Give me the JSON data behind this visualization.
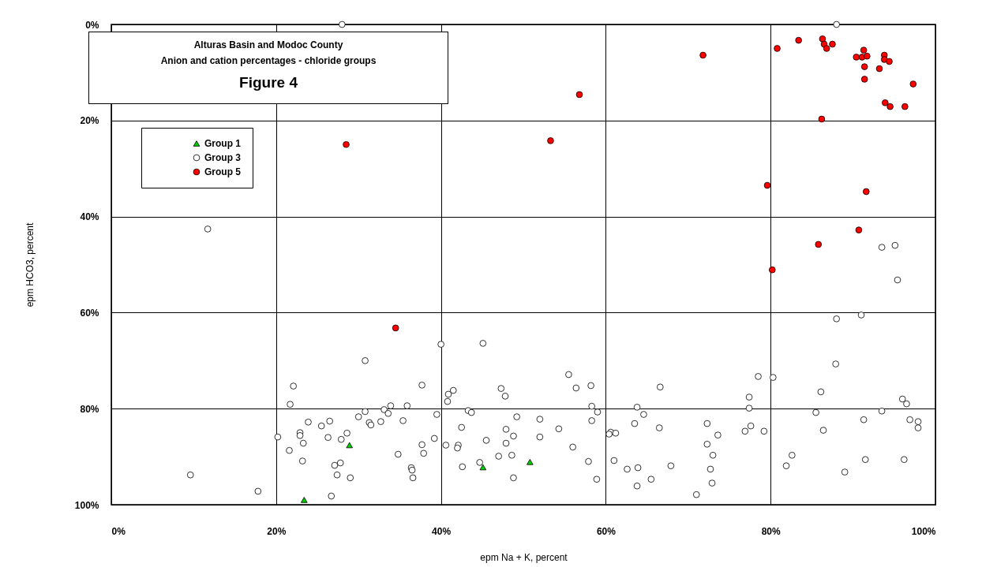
{
  "chart_data": {
    "type": "scatter",
    "title": "Alturas Basin and Modoc County",
    "subtitle": "Anion and cation percentages - chloride groups",
    "annotations": [
      "Figure 4"
    ],
    "xlabel": "epm Na + K, percent",
    "ylabel": "epm HCO3, percent",
    "xlim": [
      0,
      100
    ],
    "ylim": [
      100,
      0
    ],
    "xticks": [
      {
        "value": 0,
        "label": "0%"
      },
      {
        "value": 20,
        "label": "20%"
      },
      {
        "value": 40,
        "label": "40%"
      },
      {
        "value": 60,
        "label": "60%"
      },
      {
        "value": 80,
        "label": "80%"
      },
      {
        "value": 100,
        "label": "100%"
      }
    ],
    "yticks": [
      {
        "value": 0,
        "label": "0%"
      },
      {
        "value": 20,
        "label": "20%"
      },
      {
        "value": 40,
        "label": "40%"
      },
      {
        "value": 60,
        "label": "60%"
      },
      {
        "value": 80,
        "label": "80%"
      },
      {
        "value": 100,
        "label": "100%"
      }
    ],
    "grid": true,
    "legend": "top left",
    "series": [
      {
        "name": "Group 1",
        "color": "#00cc00",
        "marker": "triangle",
        "x": [
          28.9,
          23.4,
          45.1,
          50.8
        ],
        "values": [
          87.6,
          99.0,
          92.2,
          91.1
        ]
      },
      {
        "name": "Group 3",
        "color": "#ffffff",
        "marker": "circle",
        "x": [
          28,
          11.7,
          88,
          93.5,
          95.1,
          95.4,
          88.0,
          91.0,
          87.9,
          78.5,
          80.3,
          55.5,
          56.4,
          58.2,
          66.6,
          77.4,
          77.4,
          86.1,
          96.0,
          96.5,
          58.3,
          59.0,
          52.0,
          58.3,
          54.3,
          52.0,
          56.0,
          57.9,
          58.9,
          63.8,
          64.6,
          63.5,
          60.6,
          60.4,
          61.2,
          66.5,
          61.0,
          62.6,
          63.9,
          63.8,
          65.5,
          67.9,
          72.3,
          73.6,
          72.3,
          73.0,
          72.7,
          72.9,
          71.0,
          76.9,
          77.6,
          79.2,
          85.5,
          86.4,
          91.3,
          93.5,
          96.9,
          97.9,
          97.9,
          82.6,
          81.9,
          89.0,
          91.5,
          96.2,
          40.0,
          45.1,
          30.8,
          22.1,
          21.7,
          37.7,
          40.9,
          41.5,
          40.8,
          47.3,
          47.8,
          30.8,
          33.1,
          33.9,
          33.6,
          35.9,
          30.0,
          31.3,
          31.5,
          32.7,
          35.4,
          39.5,
          43.3,
          43.7,
          49.2,
          23.9,
          25.5,
          26.5,
          22.9,
          22.9,
          20.2,
          26.3,
          27.9,
          28.6,
          23.3,
          21.6,
          23.2,
          27.1,
          27.8,
          27.4,
          29.0,
          26.7,
          17.8,
          9.6,
          34.8,
          37.7,
          37.9,
          39.2,
          36.4,
          36.5,
          36.6,
          42.5,
          40.6,
          42.1,
          42.0,
          45.5,
          47.9,
          48.8,
          47.9,
          47.0,
          48.6,
          44.7,
          42.6,
          48.8
        ],
        "values": [
          0,
          42.6,
          0,
          46.4,
          46.0,
          53.2,
          61.3,
          60.5,
          70.7,
          73.3,
          73.5,
          72.9,
          75.7,
          75.2,
          75.5,
          77.6,
          79.9,
          76.5,
          78.0,
          79.0,
          79.5,
          80.7,
          82.2,
          82.5,
          84.2,
          85.9,
          88.0,
          91.0,
          94.7,
          79.7,
          81.2,
          83.1,
          84.9,
          85.3,
          85.1,
          84.0,
          90.8,
          92.6,
          92.3,
          96.1,
          94.7,
          91.9,
          83.1,
          85.5,
          87.4,
          89.7,
          92.6,
          95.5,
          97.9,
          84.7,
          83.6,
          84.7,
          80.8,
          84.5,
          82.3,
          80.5,
          82.3,
          82.7,
          84.0,
          89.7,
          91.9,
          93.2,
          90.6,
          90.6,
          66.6,
          66.4,
          70.0,
          75.3,
          79.1,
          75.1,
          77.0,
          76.2,
          78.5,
          75.8,
          77.4,
          80.6,
          80.2,
          79.4,
          81.0,
          79.4,
          81.7,
          82.9,
          83.4,
          82.7,
          82.5,
          81.2,
          80.4,
          80.8,
          81.7,
          82.8,
          83.6,
          82.6,
          85.0,
          85.6,
          85.9,
          86.0,
          86.4,
          85.1,
          87.2,
          88.7,
          90.9,
          91.8,
          91.3,
          93.8,
          94.4,
          98.2,
          97.2,
          93.8,
          89.5,
          87.5,
          89.3,
          86.2,
          92.3,
          92.8,
          94.4,
          83.9,
          87.6,
          87.6,
          88.2,
          86.6,
          84.3,
          85.7,
          87.2,
          89.9,
          89.7,
          91.2,
          92.1,
          94.4
        ]
      },
      {
        "name": "Group 5",
        "color": "#ff0000",
        "marker": "circle",
        "x": [
          28.5,
          71.8,
          56.8,
          53.3,
          80.8,
          83.4,
          86.3,
          86.5,
          86.8,
          87.5,
          91.3,
          90.4,
          91.1,
          91.7,
          93.8,
          93.8,
          94.4,
          91.4,
          93.2,
          91.4,
          97.3,
          93.9,
          94.5,
          96.3,
          86.2,
          79.6,
          91.6,
          90.7,
          85.8,
          80.2,
          34.5
        ],
        "values": [
          25.0,
          6.4,
          14.6,
          24.2,
          5.0,
          3.3,
          3.0,
          4.1,
          5.0,
          4.1,
          5.35,
          6.8,
          6.8,
          6.6,
          6.4,
          7.3,
          7.7,
          8.8,
          9.2,
          11.4,
          12.4,
          16.3,
          17.1,
          17.1,
          19.7,
          33.5,
          34.8,
          42.8,
          45.8,
          51.1,
          63.2
        ]
      }
    ]
  }
}
